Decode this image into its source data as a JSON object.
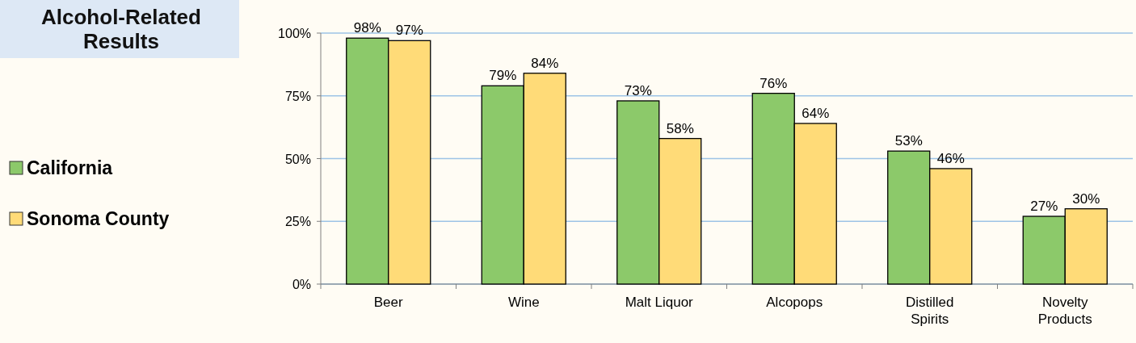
{
  "chart_data": {
    "type": "bar",
    "title": "Alcohol-Related Results",
    "categories": [
      "Beer",
      "Wine",
      "Malt Liquor",
      "Alcopops",
      "Distilled Spirits",
      "Novelty Products"
    ],
    "series": [
      {
        "name": "California",
        "color": "#8cc96a",
        "values": [
          98,
          79,
          73,
          76,
          53,
          27
        ],
        "value_labels": [
          "98%",
          "79%",
          "73%",
          "76%",
          "53%",
          "27%"
        ]
      },
      {
        "name": "Sonoma County",
        "color": "#ffdb78",
        "values": [
          97,
          84,
          58,
          64,
          46,
          30
        ],
        "value_labels": [
          "97%",
          "84%",
          "58%",
          "64%",
          "46%",
          "30%"
        ]
      }
    ],
    "ylim": [
      0,
      100
    ],
    "yticks": [
      {
        "value": 0,
        "label": "0%"
      },
      {
        "value": 25,
        "label": "25%"
      },
      {
        "value": 50,
        "label": "50%"
      },
      {
        "value": 75,
        "label": "75%"
      },
      {
        "value": 100,
        "label": "100%"
      }
    ],
    "grid": "y",
    "legend": "left"
  }
}
